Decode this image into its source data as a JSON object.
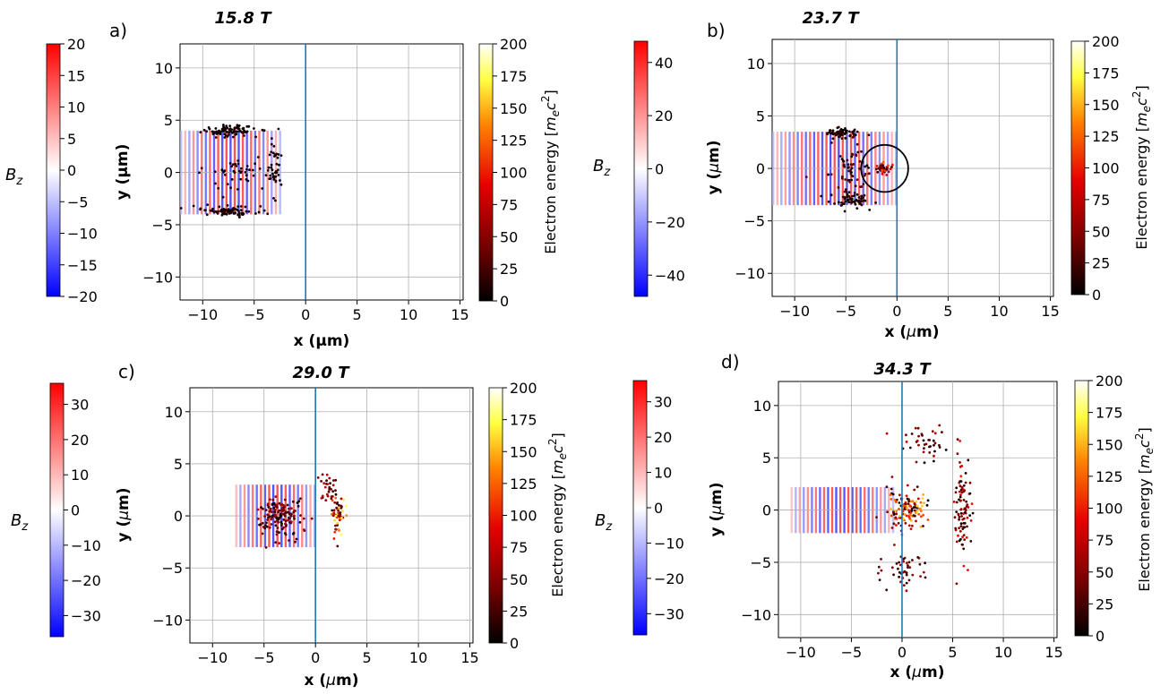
{
  "colormaps": {
    "bz": [
      "#0000ff",
      "#ffffff",
      "#ff0000"
    ],
    "energy": [
      "#000000",
      "#7a0000",
      "#e60000",
      "#ff8000",
      "#ffff40",
      "#ffffff"
    ]
  },
  "vline_color": "#1f77b4",
  "chart_data": [
    {
      "type": "scatter",
      "panel_label": "a)",
      "title": "15.8 T",
      "xlabel": "x (μm)",
      "ylabel": "y (μm)",
      "xlim": [
        -12.2,
        15.3
      ],
      "ylim": [
        -12.2,
        12.3
      ],
      "xticks": [
        -10,
        -5,
        0,
        5,
        10,
        15
      ],
      "xtick_labels": [
        "−10",
        "−5",
        "0",
        "5",
        "10",
        "15"
      ],
      "yticks": [
        -10,
        -5,
        0,
        5,
        10
      ],
      "ytick_labels": [
        "−10",
        "−5",
        "0",
        "5",
        "10"
      ],
      "grid": true,
      "vline_x": 0,
      "bz_colorbar": {
        "label": "B_z",
        "range": [
          -20,
          20
        ],
        "ticks": [
          20,
          15,
          10,
          5,
          0,
          -5,
          -10,
          -15,
          -20
        ],
        "tick_labels": [
          "20",
          "15",
          "10",
          "5",
          "0",
          "−5",
          "−10",
          "−15",
          "−20"
        ]
      },
      "energy_colorbar": {
        "label": "Electron energy [m_e c^2]",
        "range": [
          0,
          200
        ],
        "ticks": [
          200,
          175,
          150,
          125,
          100,
          75,
          50,
          25,
          0
        ],
        "tick_labels": [
          "200",
          "175",
          "150",
          "125",
          "100",
          "75",
          "50",
          "25",
          "0"
        ]
      },
      "field_wave": {
        "x_range": [
          -12.2,
          -2.5
        ],
        "y_halfwidth": 4.0,
        "wavelength": 0.8,
        "amplitude": 20
      },
      "electron_clusters": [
        {
          "cx": -7.5,
          "cy": 4.0,
          "sx": 2.2,
          "sy": 0.45,
          "n": 90,
          "e_max": 15
        },
        {
          "cx": -7.5,
          "cy": -3.7,
          "sx": 2.2,
          "sy": 0.4,
          "n": 80,
          "e_max": 15
        },
        {
          "cx": -3.0,
          "cy": 0.5,
          "sx": 0.6,
          "sy": 2.2,
          "n": 45,
          "e_max": 15
        },
        {
          "cx": -7.5,
          "cy": 0.0,
          "sx": 2.2,
          "sy": 1.5,
          "n": 40,
          "e_max": 15
        }
      ]
    },
    {
      "type": "scatter",
      "panel_label": "b)",
      "title": "23.7 T",
      "xlabel": "x (μm)",
      "ylabel": "y (μm)",
      "xlim": [
        -12.2,
        15.3
      ],
      "ylim": [
        -12.2,
        12.3
      ],
      "xticks": [
        -10,
        -5,
        0,
        5,
        10,
        15
      ],
      "xtick_labels": [
        "−10",
        "−5",
        "0",
        "5",
        "10",
        "15"
      ],
      "yticks": [
        -10,
        -5,
        0,
        5,
        10
      ],
      "ytick_labels": [
        "−10",
        "−5",
        "0",
        "5",
        "10"
      ],
      "grid": true,
      "vline_x": 0,
      "circle_annotation": {
        "cx": -1.2,
        "cy": 0.0,
        "r": 2.3
      },
      "bz_colorbar": {
        "label": "B_z",
        "range": [
          -48,
          48
        ],
        "ticks": [
          40,
          20,
          0,
          -20,
          -40
        ],
        "tick_labels": [
          "40",
          "20",
          "0",
          "−20",
          "−40"
        ]
      },
      "energy_colorbar": {
        "label": "Electron energy [m_e c^2]",
        "range": [
          0,
          200
        ],
        "ticks": [
          200,
          175,
          150,
          125,
          100,
          75,
          50,
          25,
          0
        ],
        "tick_labels": [
          "200",
          "175",
          "150",
          "125",
          "100",
          "75",
          "50",
          "25",
          "0"
        ]
      },
      "field_wave": {
        "x_range": [
          -12.2,
          0.0
        ],
        "y_halfwidth": 3.5,
        "wavelength": 0.8,
        "amplitude": 20
      },
      "electron_clusters": [
        {
          "cx": -5.5,
          "cy": 3.3,
          "sx": 1.4,
          "sy": 0.5,
          "n": 60,
          "e_max": 20
        },
        {
          "cx": -4.5,
          "cy": -3.0,
          "sx": 1.7,
          "sy": 0.6,
          "n": 60,
          "e_max": 20
        },
        {
          "cx": -4.5,
          "cy": 0.0,
          "sx": 1.8,
          "sy": 1.6,
          "n": 60,
          "e_max": 40
        },
        {
          "cx": -1.5,
          "cy": 0.0,
          "sx": 0.7,
          "sy": 0.5,
          "n": 45,
          "e_max": 110
        }
      ]
    },
    {
      "type": "scatter",
      "panel_label": "c)",
      "title": "29.0 T",
      "xlabel": "x (μm)",
      "ylabel": "y (μm)",
      "xlim": [
        -12.2,
        15.3
      ],
      "ylim": [
        -12.2,
        12.3
      ],
      "xticks": [
        -10,
        -5,
        0,
        5,
        10,
        15
      ],
      "xtick_labels": [
        "−10",
        "−5",
        "0",
        "5",
        "10",
        "15"
      ],
      "yticks": [
        -10,
        -5,
        0,
        5,
        10
      ],
      "ytick_labels": [
        "−10",
        "−5",
        "0",
        "5",
        "10"
      ],
      "grid": true,
      "vline_x": 0,
      "bz_colorbar": {
        "label": "B_z",
        "range": [
          -36,
          36
        ],
        "ticks": [
          30,
          20,
          10,
          0,
          -10,
          -20,
          -30
        ],
        "tick_labels": [
          "30",
          "20",
          "10",
          "0",
          "−10",
          "−20",
          "−30"
        ]
      },
      "energy_colorbar": {
        "label": "Electron energy [m_e c^2]",
        "range": [
          0,
          200
        ],
        "ticks": [
          200,
          175,
          150,
          125,
          100,
          75,
          50,
          25,
          0
        ],
        "tick_labels": [
          "200",
          "175",
          "150",
          "125",
          "100",
          "75",
          "50",
          "25",
          "0"
        ]
      },
      "field_wave": {
        "x_range": [
          -8.0,
          0.0
        ],
        "y_halfwidth": 3.0,
        "wavelength": 0.8,
        "amplitude": 20
      },
      "electron_clusters": [
        {
          "cx": -3.5,
          "cy": 0.0,
          "sx": 1.9,
          "sy": 1.5,
          "n": 150,
          "e_max": 60
        },
        {
          "cx": 1.2,
          "cy": 2.8,
          "sx": 0.7,
          "sy": 1.2,
          "n": 30,
          "e_max": 80
        },
        {
          "cx": 2.2,
          "cy": 0.0,
          "sx": 0.6,
          "sy": 1.5,
          "n": 60,
          "e_max": 170
        }
      ]
    },
    {
      "type": "scatter",
      "panel_label": "d)",
      "title": "34.3 T",
      "xlabel": "x (μm)",
      "ylabel": "y (μm)",
      "xlim": [
        -12.2,
        15.3
      ],
      "ylim": [
        -12.2,
        12.3
      ],
      "xticks": [
        -10,
        -5,
        0,
        5,
        10,
        15
      ],
      "xtick_labels": [
        "−10",
        "−5",
        "0",
        "5",
        "10",
        "15"
      ],
      "yticks": [
        -10,
        -5,
        0,
        5,
        10
      ],
      "ytick_labels": [
        "−10",
        "−5",
        "0",
        "5",
        "10"
      ],
      "grid": true,
      "vline_x": 0,
      "bz_colorbar": {
        "label": "B_z",
        "range": [
          -36,
          36
        ],
        "ticks": [
          30,
          20,
          10,
          0,
          -10,
          -20,
          -30
        ],
        "tick_labels": [
          "30",
          "20",
          "10",
          "0",
          "−10",
          "−20",
          "−30"
        ]
      },
      "energy_colorbar": {
        "label": "Electron energy [m_e c^2]",
        "range": [
          0,
          200
        ],
        "ticks": [
          200,
          175,
          150,
          125,
          100,
          75,
          50,
          25,
          0
        ],
        "tick_labels": [
          "200",
          "175",
          "150",
          "125",
          "100",
          "75",
          "50",
          "25",
          "0"
        ]
      },
      "field_wave": {
        "x_range": [
          -11.0,
          -1.0
        ],
        "y_halfwidth": 2.2,
        "wavelength": 0.8,
        "amplitude": 20
      },
      "electron_clusters": [
        {
          "cx": 0.5,
          "cy": 0.0,
          "sx": 1.6,
          "sy": 1.5,
          "n": 130,
          "e_max": 150
        },
        {
          "cx": 2.5,
          "cy": 6.5,
          "sx": 2.0,
          "sy": 1.5,
          "n": 40,
          "e_max": 70
        },
        {
          "cx": 6.0,
          "cy": 0.0,
          "sx": 0.8,
          "sy": 4.0,
          "n": 90,
          "e_max": 90
        },
        {
          "cx": 0.5,
          "cy": -5.5,
          "sx": 1.8,
          "sy": 1.5,
          "n": 45,
          "e_max": 60
        }
      ]
    }
  ]
}
